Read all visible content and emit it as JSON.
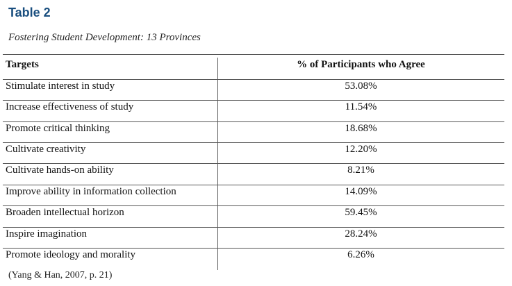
{
  "table": {
    "title": "Table 2",
    "subtitle": "Fostering Student Development: 13 Provinces",
    "headers": [
      "Targets",
      "% of Participants who Agree"
    ],
    "rows": [
      {
        "target": "Stimulate interest in study",
        "pct": "53.08%"
      },
      {
        "target": "Increase effectiveness of study",
        "pct": "11.54%"
      },
      {
        "target": "Promote critical thinking",
        "pct": "18.68%"
      },
      {
        "target": "Cultivate creativity",
        "pct": "12.20%"
      },
      {
        "target": "Cultivate hands-on ability",
        "pct": "8.21%"
      },
      {
        "target": "Improve ability in information collection",
        "pct": "14.09%"
      },
      {
        "target": "Broaden intellectual horizon",
        "pct": "59.45%"
      },
      {
        "target": "Inspire imagination",
        "pct": "28.24%"
      },
      {
        "target": "Promote ideology and morality",
        "pct": "6.26%"
      }
    ],
    "source": "(Yang & Han, 2007, p. 21)"
  }
}
